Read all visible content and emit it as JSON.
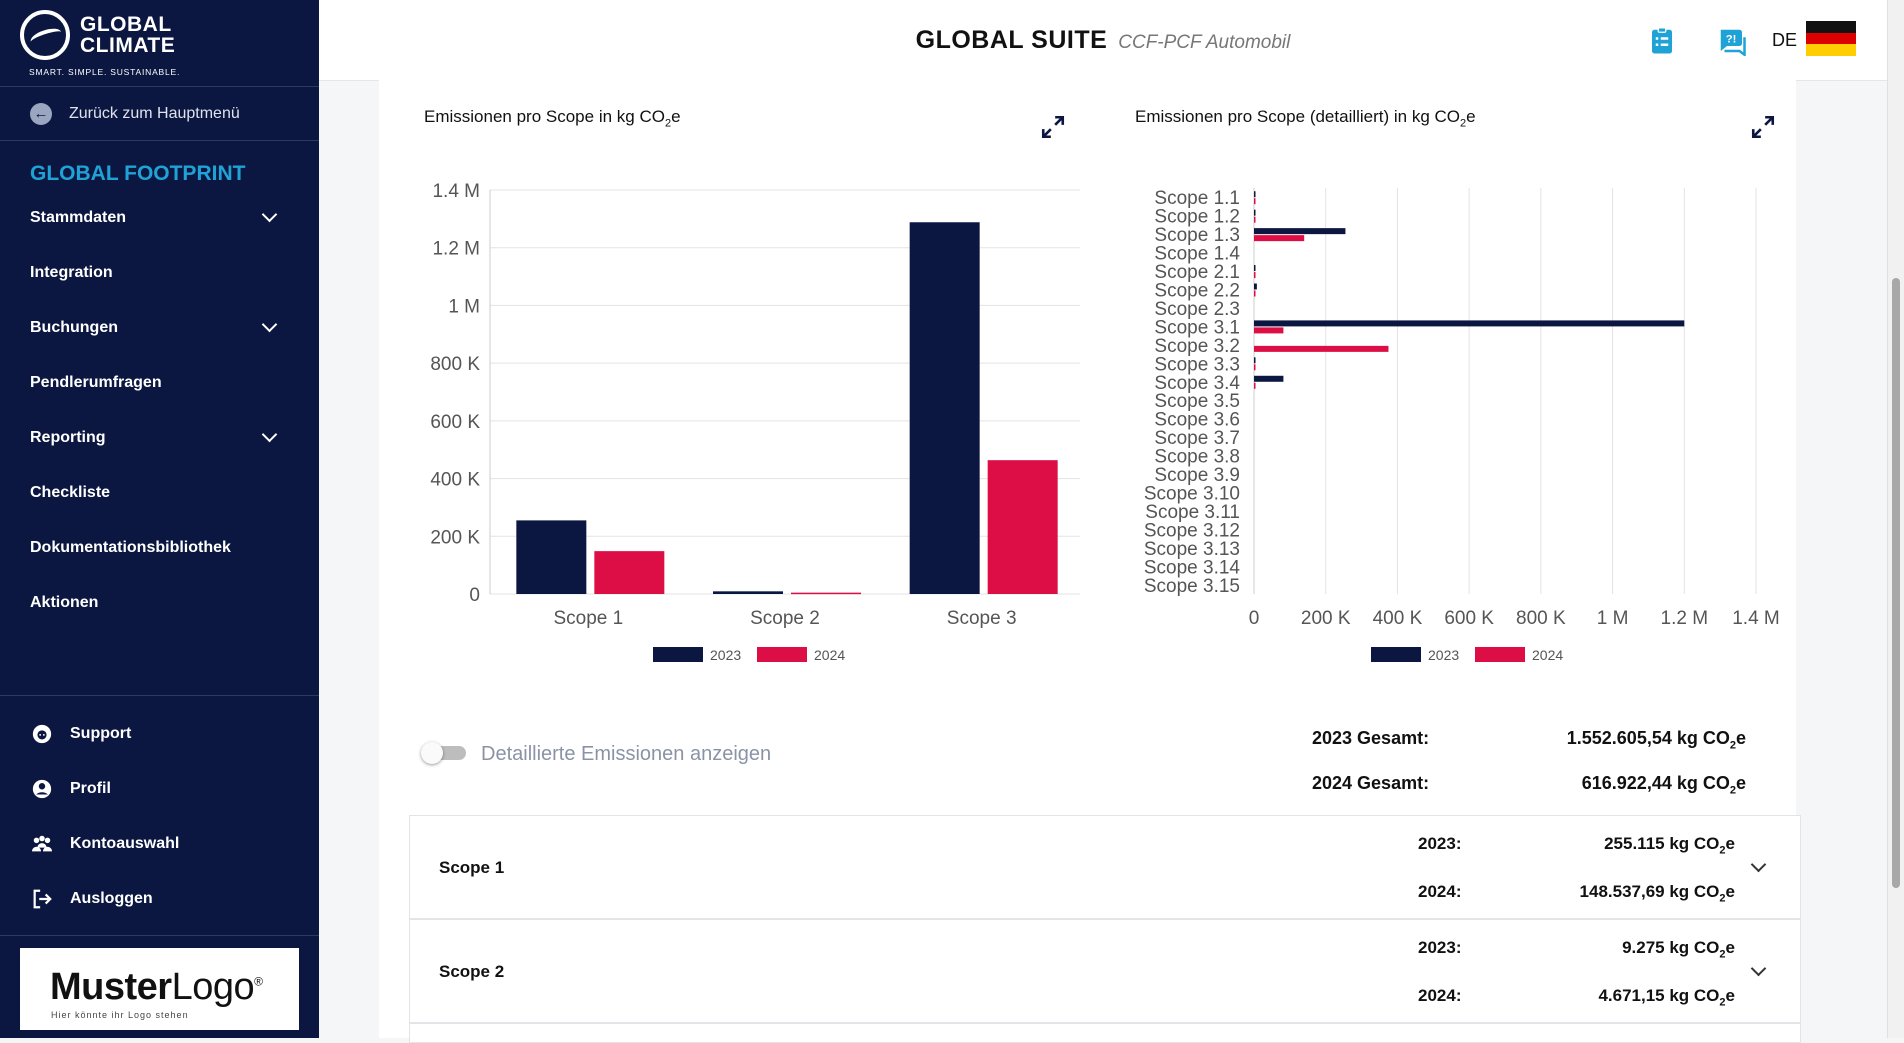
{
  "brand": {
    "line1": "GLOBAL",
    "line2": "CLIMATE",
    "tagline": "SMART. SIMPLE. SUSTAINABLE."
  },
  "sidebar": {
    "back_label": "Zurück zum Hauptmenü",
    "section_title": "GLOBAL FOOTPRINT",
    "items": [
      {
        "label": "Stammdaten",
        "expandable": true
      },
      {
        "label": "Integration",
        "expandable": false
      },
      {
        "label": "Buchungen",
        "expandable": true
      },
      {
        "label": "Pendlerumfragen",
        "expandable": false
      },
      {
        "label": "Reporting",
        "expandable": true
      },
      {
        "label": "Checkliste",
        "expandable": false
      },
      {
        "label": "Dokumentationsbibliothek",
        "expandable": false
      },
      {
        "label": "Aktionen",
        "expandable": false
      }
    ],
    "bottom_items": [
      {
        "label": "Support",
        "icon": "support-icon"
      },
      {
        "label": "Profil",
        "icon": "profile-icon"
      },
      {
        "label": "Kontoauswahl",
        "icon": "accounts-icon"
      },
      {
        "label": "Ausloggen",
        "icon": "logout-icon"
      }
    ],
    "logo": {
      "bold": "Muster",
      "light": "Logo",
      "reg": "®",
      "sub": "Hier könnte ihr Logo stehen"
    }
  },
  "header": {
    "title_bold": "GLOBAL SUITE",
    "title_italic": "CCF-PCF Automobil",
    "language": "DE"
  },
  "colors": {
    "series_2023": "#0b1740",
    "series_2024": "#dc0e45",
    "accent": "#1fa3d6"
  },
  "chart_data": [
    {
      "type": "bar",
      "title": "Emissionen pro Scope in kg CO₂e",
      "categories": [
        "Scope 1",
        "Scope 2",
        "Scope 3"
      ],
      "series": [
        {
          "name": "2023",
          "values": [
            255115,
            9275,
            1288215
          ]
        },
        {
          "name": "2024",
          "values": [
            148537.69,
            4671.15,
            463713.6
          ]
        }
      ],
      "ylim": [
        0,
        1400000
      ],
      "yticks": [
        0,
        200000,
        400000,
        600000,
        800000,
        1000000,
        1200000,
        1400000
      ],
      "ytick_labels": [
        "0",
        "200 K",
        "400 K",
        "600 K",
        "800 K",
        "1 M",
        "1.2 M",
        "1.4 M"
      ],
      "legend": [
        "2023",
        "2024"
      ]
    },
    {
      "type": "bar",
      "orientation": "horizontal",
      "title": "Emissionen pro Scope (detailliert) in kg CO₂e",
      "categories": [
        "Scope 1.1",
        "Scope 1.2",
        "Scope 1.3",
        "Scope 1.4",
        "Scope 2.1",
        "Scope 2.2",
        "Scope 2.3",
        "Scope 3.1",
        "Scope 3.2",
        "Scope 3.3",
        "Scope 3.4",
        "Scope 3.5",
        "Scope 3.6",
        "Scope 3.7",
        "Scope 3.8",
        "Scope 3.9",
        "Scope 3.10",
        "Scope 3.11",
        "Scope 3.12",
        "Scope 3.13",
        "Scope 3.14",
        "Scope 3.15"
      ],
      "series": [
        {
          "name": "2023",
          "values": [
            2000,
            1500,
            255000,
            0,
            1000,
            8000,
            0,
            1200000,
            0,
            3000,
            82000,
            0,
            0,
            0,
            0,
            0,
            0,
            0,
            0,
            0,
            0,
            0
          ]
        },
        {
          "name": "2024",
          "values": [
            1500,
            1000,
            140000,
            0,
            2000,
            2500,
            0,
            82000,
            375000,
            2000,
            1500,
            0,
            0,
            0,
            0,
            0,
            0,
            0,
            0,
            0,
            0,
            0
          ]
        }
      ],
      "xlim": [
        0,
        1400000
      ],
      "xticks": [
        0,
        200000,
        400000,
        600000,
        800000,
        1000000,
        1200000,
        1400000
      ],
      "xtick_labels": [
        "0",
        "200 K",
        "400 K",
        "600 K",
        "800 K",
        "1 M",
        "1.2 M",
        "1.4 M"
      ],
      "legend": [
        "2023",
        "2024"
      ]
    }
  ],
  "toggle": {
    "label": "Detaillierte Emissionen anzeigen",
    "on": false
  },
  "totals": [
    {
      "label": "2023 Gesamt:",
      "value": "1.552.605,54 kg CO",
      "sub": "2",
      "suffix": "e"
    },
    {
      "label": "2024 Gesamt:",
      "value": "616.922,44 kg CO",
      "sub": "2",
      "suffix": "e"
    }
  ],
  "accordions": [
    {
      "name": "Scope 1",
      "rows": [
        {
          "label": "2023:",
          "value": "255.115 kg CO"
        },
        {
          "label": "2024:",
          "value": "148.537,69 kg CO"
        }
      ]
    },
    {
      "name": "Scope 2",
      "rows": [
        {
          "label": "2023:",
          "value": "9.275 kg CO"
        },
        {
          "label": "2024:",
          "value": "4.671,15 kg CO"
        }
      ]
    }
  ],
  "unit_sub": "2",
  "unit_suffix": "e"
}
